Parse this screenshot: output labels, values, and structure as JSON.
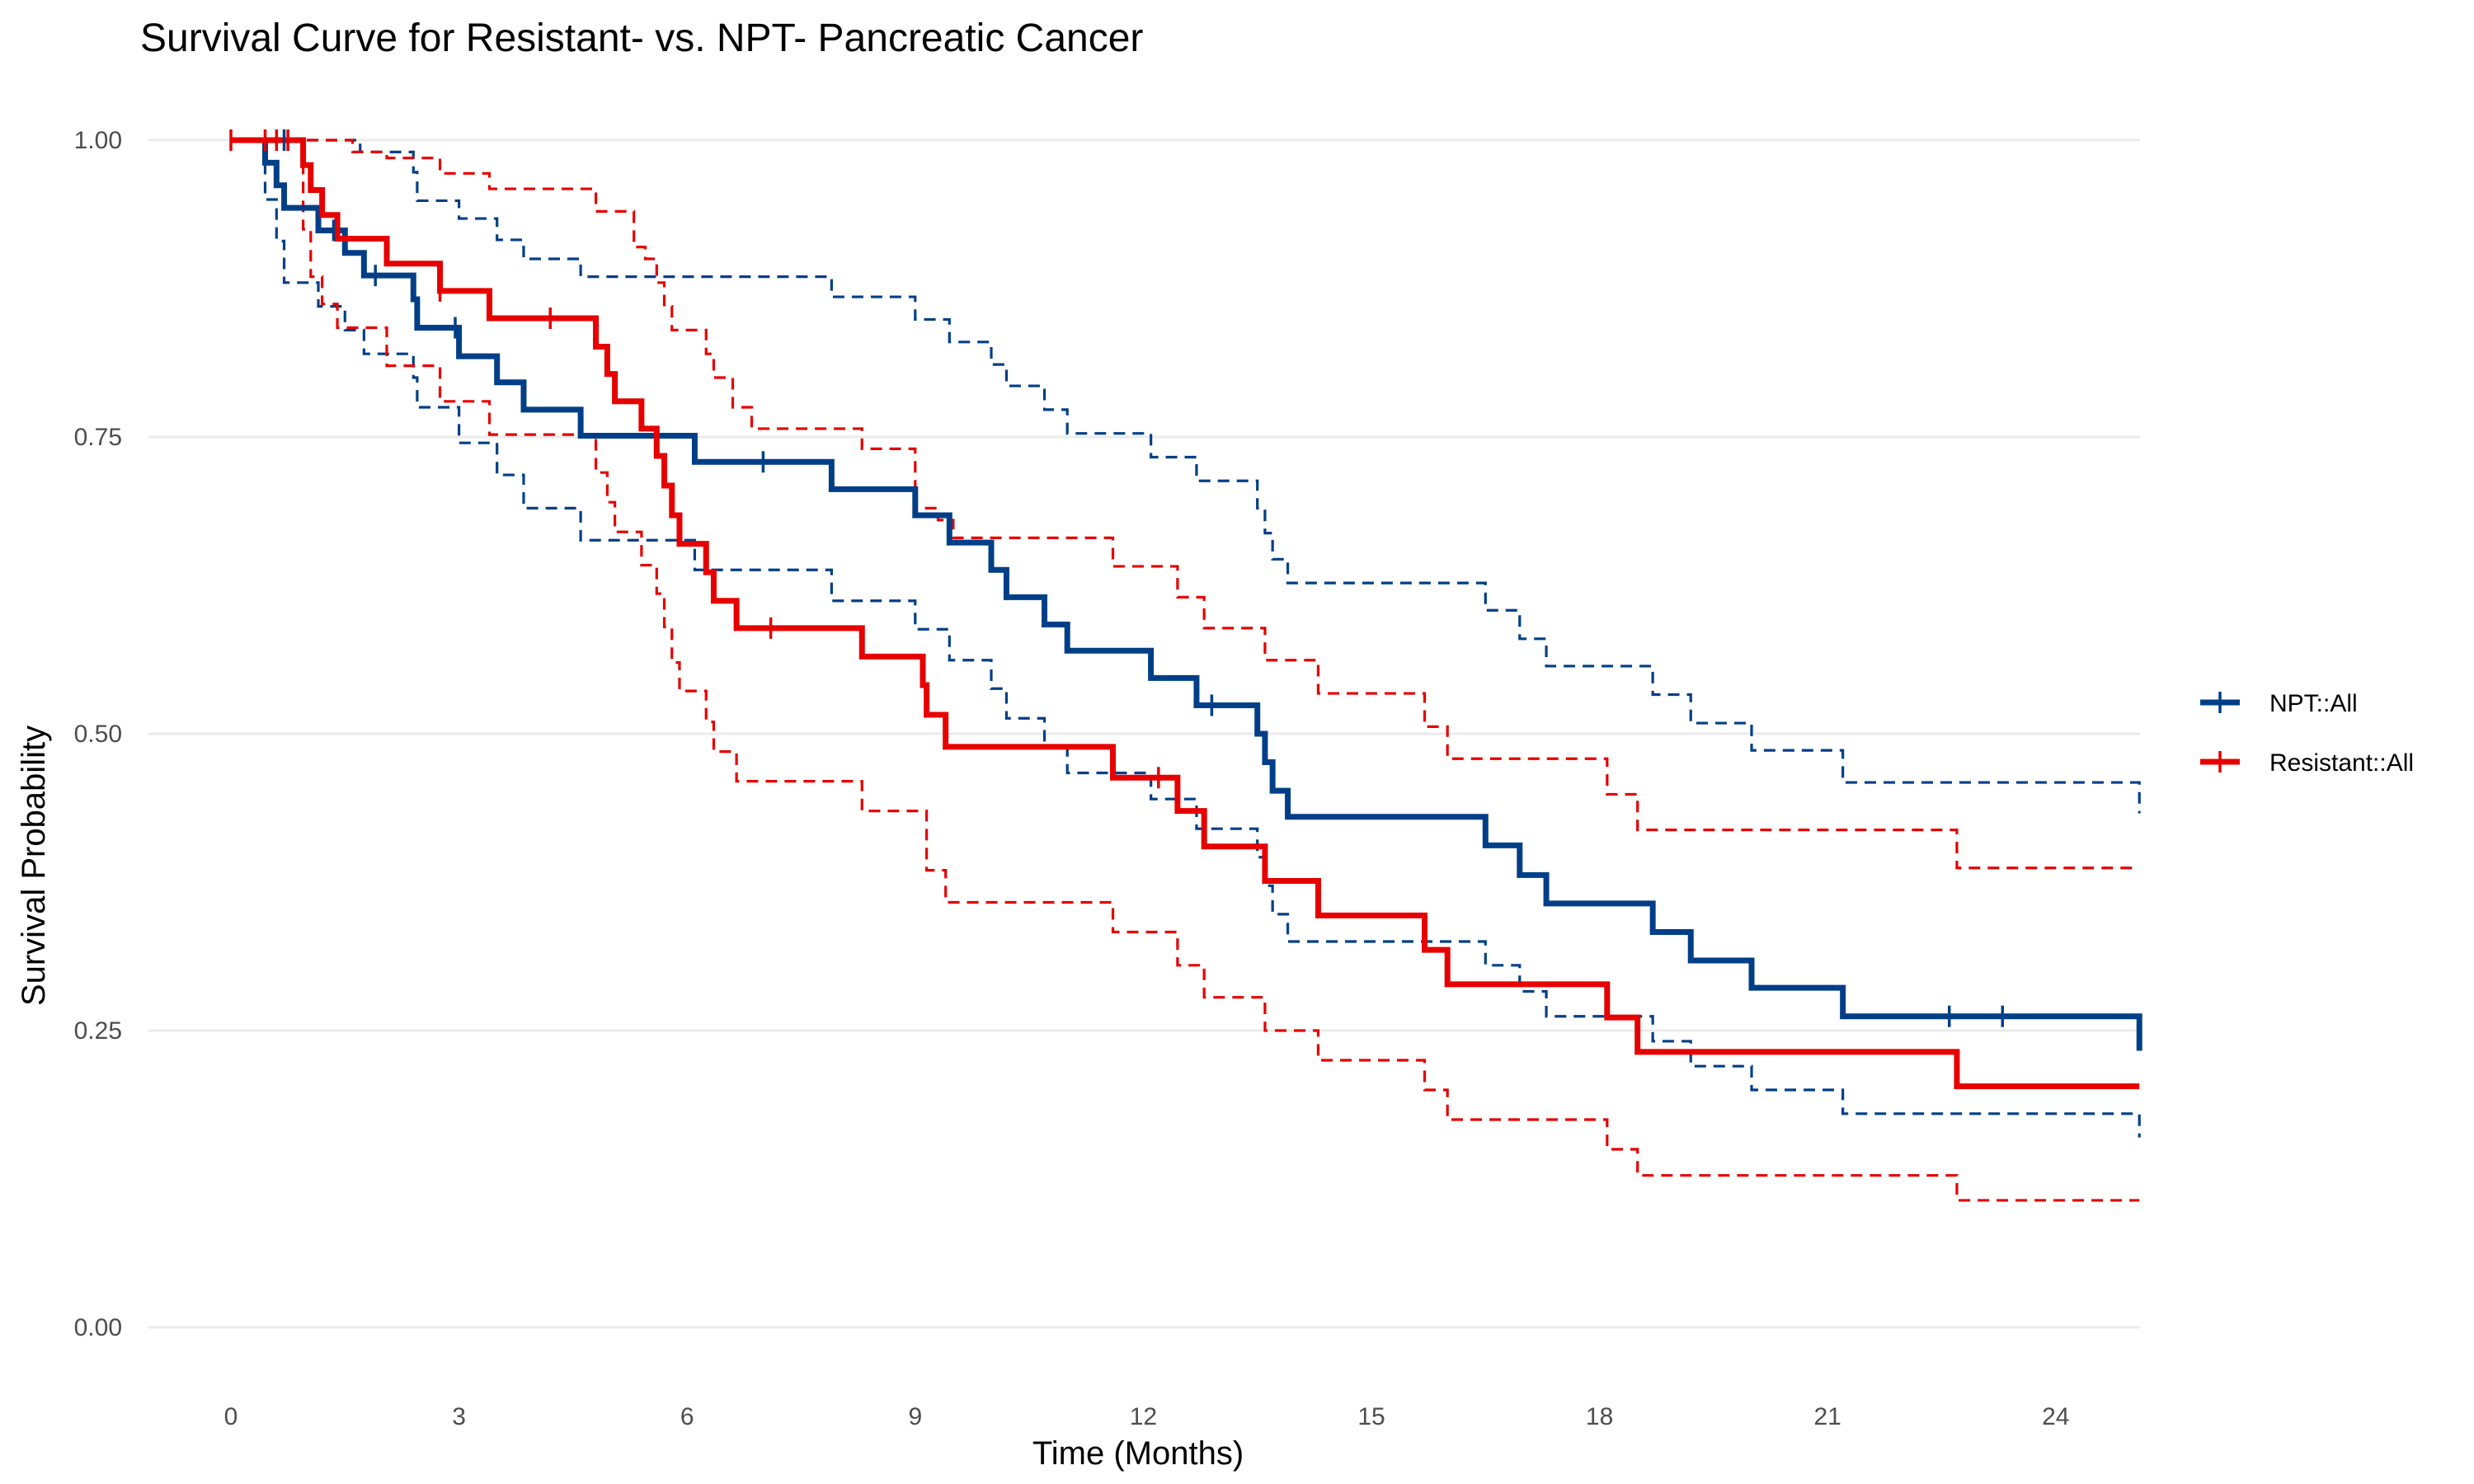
{
  "chart_data": {
    "type": "line",
    "subtype": "kaplan-meier step curves with confidence bands",
    "title": "Survival Curve for Resistant- vs. NPT- Pancreatic Cancer",
    "xlabel": "Time (Months)",
    "ylabel": "Survival Probability",
    "xlim": [
      0,
      25
    ],
    "ylim": [
      0,
      1
    ],
    "x_ticks": [
      0,
      3,
      6,
      9,
      12,
      15,
      18,
      21,
      24
    ],
    "x_tick_labels": [
      "0",
      "3",
      "6",
      "9",
      "12",
      "15",
      "18",
      "21",
      "24"
    ],
    "y_ticks": [
      0,
      0.25,
      0.5,
      0.75,
      1
    ],
    "y_tick_labels": [
      "0.00",
      "0.25",
      "0.50",
      "0.75",
      "1.00"
    ],
    "grid": true,
    "legend_position": "right",
    "series": [
      {
        "name": "NPT::All",
        "color": "#003f87",
        "steps": [
          [
            0,
            1.0
          ],
          [
            0.45,
            0.981
          ],
          [
            0.6,
            0.962
          ],
          [
            0.7,
            0.943
          ],
          [
            1.1,
            0.943
          ],
          [
            1.15,
            0.924
          ],
          [
            1.5,
            0.905
          ],
          [
            1.75,
            0.886
          ],
          [
            2.4,
            0.866
          ],
          [
            2.45,
            0.842
          ],
          [
            3.0,
            0.818
          ],
          [
            3.5,
            0.796
          ],
          [
            3.85,
            0.773
          ],
          [
            4.6,
            0.751
          ],
          [
            6.1,
            0.729
          ],
          [
            7.9,
            0.706
          ],
          [
            9.0,
            0.684
          ],
          [
            9.45,
            0.661
          ],
          [
            10.0,
            0.638
          ],
          [
            10.2,
            0.615
          ],
          [
            10.7,
            0.592
          ],
          [
            11.0,
            0.57
          ],
          [
            12.1,
            0.547
          ],
          [
            12.7,
            0.524
          ],
          [
            13.5,
            0.5
          ],
          [
            13.6,
            0.476
          ],
          [
            13.7,
            0.452
          ],
          [
            13.9,
            0.43
          ],
          [
            16.5,
            0.406
          ],
          [
            16.95,
            0.381
          ],
          [
            17.3,
            0.357
          ],
          [
            18.7,
            0.333
          ],
          [
            19.2,
            0.309
          ],
          [
            20.0,
            0.286
          ],
          [
            21.2,
            0.262
          ],
          [
            25.1,
            0.233
          ]
        ],
        "censor_times": [
          [
            0.7,
            1.0
          ],
          [
            1.35,
            0.924
          ],
          [
            1.9,
            0.886
          ],
          [
            2.95,
            0.842
          ],
          [
            7.0,
            0.729
          ],
          [
            12.9,
            0.524
          ],
          [
            22.6,
            0.262
          ],
          [
            23.3,
            0.262
          ]
        ],
        "upper": [
          [
            0,
            1.0
          ],
          [
            0.45,
            1.0
          ],
          [
            1.7,
            0.99
          ],
          [
            2.4,
            0.973
          ],
          [
            2.45,
            0.949
          ],
          [
            3.0,
            0.934
          ],
          [
            3.5,
            0.916
          ],
          [
            3.85,
            0.9
          ],
          [
            4.6,
            0.885
          ],
          [
            6.1,
            0.885
          ],
          [
            7.9,
            0.868
          ],
          [
            9.0,
            0.849
          ],
          [
            9.45,
            0.83
          ],
          [
            10.0,
            0.811
          ],
          [
            10.2,
            0.793
          ],
          [
            10.7,
            0.773
          ],
          [
            11.0,
            0.753
          ],
          [
            12.1,
            0.733
          ],
          [
            12.7,
            0.713
          ],
          [
            13.5,
            0.69
          ],
          [
            13.6,
            0.669
          ],
          [
            13.7,
            0.647
          ],
          [
            13.9,
            0.627
          ],
          [
            16.5,
            0.604
          ],
          [
            16.95,
            0.58
          ],
          [
            17.3,
            0.557
          ],
          [
            18.7,
            0.533
          ],
          [
            19.2,
            0.509
          ],
          [
            20.0,
            0.486
          ],
          [
            21.2,
            0.459
          ],
          [
            25.1,
            0.433
          ]
        ],
        "lower": [
          [
            0,
            1.0
          ],
          [
            0.45,
            0.95
          ],
          [
            0.6,
            0.915
          ],
          [
            0.7,
            0.88
          ],
          [
            1.15,
            0.86
          ],
          [
            1.5,
            0.84
          ],
          [
            1.75,
            0.82
          ],
          [
            2.4,
            0.8
          ],
          [
            2.45,
            0.775
          ],
          [
            3.0,
            0.745
          ],
          [
            3.5,
            0.718
          ],
          [
            3.85,
            0.69
          ],
          [
            4.6,
            0.663
          ],
          [
            6.1,
            0.638
          ],
          [
            7.9,
            0.612
          ],
          [
            9.0,
            0.588
          ],
          [
            9.45,
            0.562
          ],
          [
            10.0,
            0.538
          ],
          [
            10.2,
            0.513
          ],
          [
            10.7,
            0.49
          ],
          [
            11.0,
            0.467
          ],
          [
            12.1,
            0.445
          ],
          [
            12.7,
            0.42
          ],
          [
            13.5,
            0.396
          ],
          [
            13.6,
            0.372
          ],
          [
            13.7,
            0.348
          ],
          [
            13.9,
            0.325
          ],
          [
            16.5,
            0.305
          ],
          [
            16.95,
            0.283
          ],
          [
            17.3,
            0.262
          ],
          [
            18.7,
            0.241
          ],
          [
            19.2,
            0.22
          ],
          [
            20.0,
            0.2
          ],
          [
            21.2,
            0.18
          ],
          [
            25.1,
            0.16
          ]
        ]
      },
      {
        "name": "Resistant::All",
        "color": "#e60000",
        "steps": [
          [
            0,
            1.0
          ],
          [
            0.95,
            0.979
          ],
          [
            1.05,
            0.958
          ],
          [
            1.2,
            0.937
          ],
          [
            1.4,
            0.917
          ],
          [
            2.05,
            0.896
          ],
          [
            2.75,
            0.873
          ],
          [
            3.4,
            0.85
          ],
          [
            4.8,
            0.826
          ],
          [
            4.95,
            0.803
          ],
          [
            5.05,
            0.78
          ],
          [
            5.4,
            0.757
          ],
          [
            5.6,
            0.734
          ],
          [
            5.7,
            0.709
          ],
          [
            5.8,
            0.684
          ],
          [
            5.9,
            0.66
          ],
          [
            6.25,
            0.636
          ],
          [
            6.35,
            0.612
          ],
          [
            6.65,
            0.589
          ],
          [
            8.3,
            0.565
          ],
          [
            9.1,
            0.541
          ],
          [
            9.15,
            0.516
          ],
          [
            9.4,
            0.489
          ],
          [
            11.6,
            0.463
          ],
          [
            12.45,
            0.435
          ],
          [
            12.8,
            0.405
          ],
          [
            13.6,
            0.376
          ],
          [
            14.3,
            0.347
          ],
          [
            15.7,
            0.318
          ],
          [
            16.0,
            0.289
          ],
          [
            18.1,
            0.261
          ],
          [
            18.5,
            0.232
          ],
          [
            22.7,
            0.203
          ],
          [
            25.1,
            0.203
          ]
        ],
        "censor_times": [
          [
            0,
            1.0
          ],
          [
            0.45,
            1.0
          ],
          [
            0.6,
            1.0
          ],
          [
            0.75,
            1.0
          ],
          [
            2.75,
            0.873
          ],
          [
            4.2,
            0.85
          ],
          [
            7.1,
            0.589
          ],
          [
            12.2,
            0.463
          ]
        ],
        "upper": [
          [
            0,
            1.0
          ],
          [
            1.2,
            1.0
          ],
          [
            1.6,
            0.99
          ],
          [
            2.05,
            0.985
          ],
          [
            2.75,
            0.972
          ],
          [
            3.4,
            0.959
          ],
          [
            4.8,
            0.94
          ],
          [
            5.3,
            0.91
          ],
          [
            5.45,
            0.9
          ],
          [
            5.6,
            0.88
          ],
          [
            5.7,
            0.86
          ],
          [
            5.8,
            0.84
          ],
          [
            6.25,
            0.82
          ],
          [
            6.35,
            0.8
          ],
          [
            6.6,
            0.775
          ],
          [
            6.85,
            0.757
          ],
          [
            8.3,
            0.74
          ],
          [
            9.0,
            0.69
          ],
          [
            9.3,
            0.68
          ],
          [
            9.5,
            0.665
          ],
          [
            11.6,
            0.641
          ],
          [
            12.45,
            0.615
          ],
          [
            12.8,
            0.589
          ],
          [
            13.6,
            0.562
          ],
          [
            14.3,
            0.534
          ],
          [
            15.7,
            0.506
          ],
          [
            16.0,
            0.479
          ],
          [
            18.1,
            0.449
          ],
          [
            18.5,
            0.419
          ],
          [
            22.7,
            0.387
          ],
          [
            25.1,
            0.387
          ]
        ],
        "lower": [
          [
            0,
            1.0
          ],
          [
            0.95,
            0.925
          ],
          [
            1.05,
            0.885
          ],
          [
            1.2,
            0.862
          ],
          [
            1.4,
            0.842
          ],
          [
            2.05,
            0.81
          ],
          [
            2.75,
            0.78
          ],
          [
            3.4,
            0.752
          ],
          [
            4.8,
            0.72
          ],
          [
            4.95,
            0.695
          ],
          [
            5.05,
            0.67
          ],
          [
            5.4,
            0.642
          ],
          [
            5.6,
            0.618
          ],
          [
            5.7,
            0.59
          ],
          [
            5.8,
            0.56
          ],
          [
            5.9,
            0.536
          ],
          [
            6.25,
            0.51
          ],
          [
            6.35,
            0.485
          ],
          [
            6.65,
            0.46
          ],
          [
            8.3,
            0.435
          ],
          [
            9.15,
            0.385
          ],
          [
            9.4,
            0.358
          ],
          [
            11.6,
            0.333
          ],
          [
            12.45,
            0.305
          ],
          [
            12.8,
            0.278
          ],
          [
            13.6,
            0.25
          ],
          [
            14.3,
            0.225
          ],
          [
            15.7,
            0.2
          ],
          [
            16.0,
            0.175
          ],
          [
            18.1,
            0.15
          ],
          [
            18.5,
            0.128
          ],
          [
            22.7,
            0.107
          ],
          [
            25.1,
            0.107
          ]
        ]
      }
    ]
  }
}
